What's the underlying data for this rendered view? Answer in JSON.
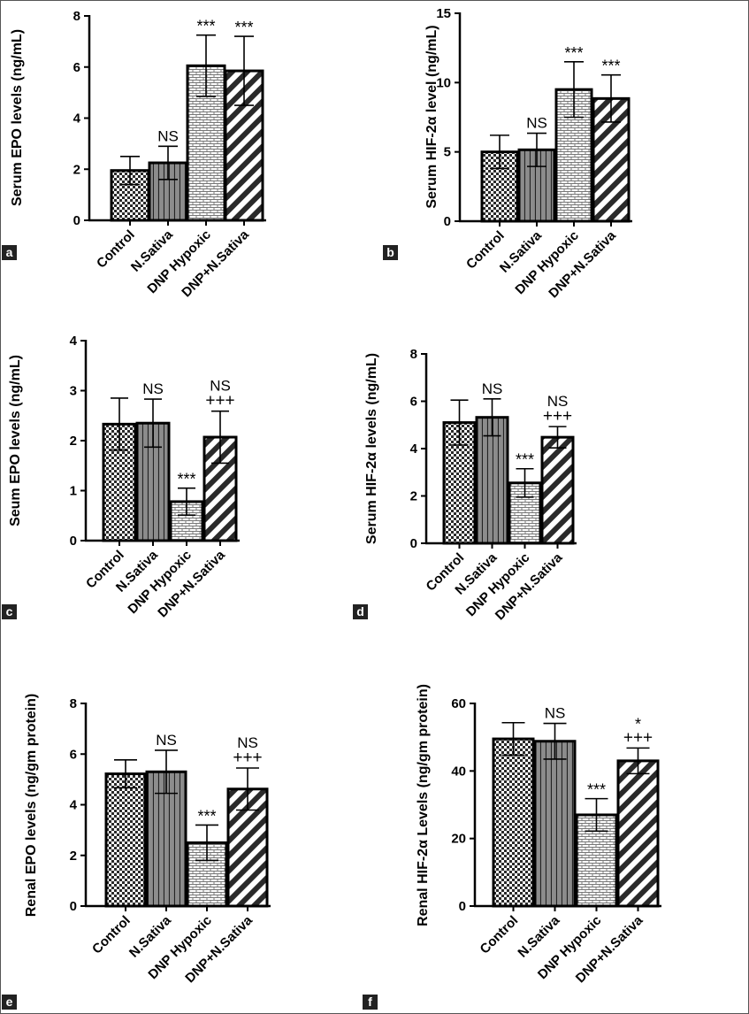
{
  "figure_id": "figure",
  "colors": {
    "axis": "#000000",
    "solid_bar": "#8c8c8c",
    "tag_box": "#222222",
    "tag_text": "#ffffff"
  },
  "chart_data": [
    {
      "panel": "a",
      "type": "bar",
      "categories": [
        "Control",
        "N.Sativa",
        "DNP Hypoxic",
        "DNP+N.Sativa"
      ],
      "patterns": [
        "checker",
        "stripes",
        "brick",
        "diagonal"
      ],
      "values": [
        1.95,
        2.25,
        6.05,
        5.85
      ],
      "errors": [
        0.55,
        0.65,
        1.2,
        1.35
      ],
      "annotations": [
        [],
        [
          "NS"
        ],
        [
          "***"
        ],
        [
          "***"
        ]
      ],
      "ylabel": "Serum EPO levels (ng/mL)",
      "ylim": [
        0,
        8
      ],
      "yticks": [
        0,
        2,
        4,
        6,
        8
      ]
    },
    {
      "panel": "b",
      "type": "bar",
      "categories": [
        "Control",
        "N.Sativa",
        "DNP Hypoxic",
        "DNP+N.Sativa"
      ],
      "patterns": [
        "checker",
        "stripes",
        "brick",
        "diagonal"
      ],
      "values": [
        5.0,
        5.15,
        9.5,
        8.85
      ],
      "errors": [
        1.2,
        1.2,
        2.0,
        1.7
      ],
      "annotations": [
        [],
        [
          "NS"
        ],
        [
          "***"
        ],
        [
          "***"
        ]
      ],
      "ylabel": "Serum HIF-2α level (ng/mL)",
      "ylim": [
        0,
        15
      ],
      "yticks": [
        0,
        5,
        10,
        15
      ]
    },
    {
      "panel": "c",
      "type": "bar",
      "categories": [
        "Control",
        "N.Sativa",
        "DNP Hypoxic",
        "DNP+N.Sativa"
      ],
      "patterns": [
        "checker",
        "stripes",
        "brick",
        "diagonal"
      ],
      "values": [
        2.33,
        2.35,
        0.78,
        2.07
      ],
      "errors": [
        0.52,
        0.48,
        0.27,
        0.52
      ],
      "annotations": [
        [],
        [
          "NS"
        ],
        [
          "***"
        ],
        [
          "+++",
          "NS"
        ]
      ],
      "ylabel": "Seum EPO levels (ng/mL)",
      "ylim": [
        0,
        4
      ],
      "yticks": [
        0,
        1,
        2,
        3,
        4
      ]
    },
    {
      "panel": "d",
      "type": "bar",
      "categories": [
        "Control",
        "N.Sativa",
        "DNP Hypoxic",
        "DNP+N.Sativa"
      ],
      "patterns": [
        "checker",
        "stripes",
        "brick",
        "diagonal"
      ],
      "values": [
        5.1,
        5.32,
        2.55,
        4.48
      ],
      "errors": [
        0.95,
        0.78,
        0.6,
        0.45
      ],
      "annotations": [
        [],
        [
          "NS"
        ],
        [
          "***"
        ],
        [
          "+++",
          "NS"
        ]
      ],
      "ylabel": "Serum HIF-2α levels (ng/mL)",
      "ylim": [
        0,
        8
      ],
      "yticks": [
        0,
        2,
        4,
        6,
        8
      ]
    },
    {
      "panel": "e",
      "type": "bar",
      "categories": [
        "Control",
        "N.Sativa",
        "DNP Hypoxic",
        "DNP+N.Sativa"
      ],
      "patterns": [
        "checker",
        "stripes",
        "brick",
        "diagonal"
      ],
      "values": [
        5.22,
        5.3,
        2.5,
        4.62
      ],
      "errors": [
        0.55,
        0.85,
        0.7,
        0.83
      ],
      "annotations": [
        [],
        [
          "NS"
        ],
        [
          "***"
        ],
        [
          "+++",
          "NS"
        ]
      ],
      "ylabel": "Renal EPO levels (ng/gm protein)",
      "ylim": [
        0,
        8
      ],
      "yticks": [
        0,
        2,
        4,
        6,
        8
      ]
    },
    {
      "panel": "f",
      "type": "bar",
      "categories": [
        "Control",
        "N.Sativa",
        "DNP Hypoxic",
        "DNP+N.Sativa"
      ],
      "patterns": [
        "checker",
        "stripes",
        "brick",
        "diagonal"
      ],
      "values": [
        49.5,
        48.8,
        27.0,
        43.0
      ],
      "errors": [
        4.8,
        5.3,
        4.8,
        3.8
      ],
      "annotations": [
        [],
        [
          "NS"
        ],
        [
          "***"
        ],
        [
          "+++",
          "*"
        ]
      ],
      "ylabel": "Renal HIF-2α Levels (ng/gm protein)",
      "ylim": [
        0,
        60
      ],
      "yticks": [
        0,
        20,
        40,
        60
      ]
    }
  ]
}
